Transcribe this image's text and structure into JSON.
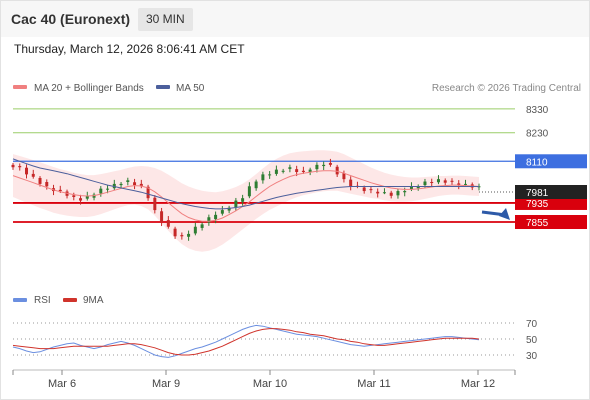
{
  "header": {
    "title": "Cac 40 (Euronext)",
    "timeframe": "30 MIN"
  },
  "timestamp": "Thursday, March 12, 2026 8:06:41 AM CET",
  "legend": {
    "ma20": "MA 20 + Bollinger Bands",
    "ma50": "MA 50",
    "copyright": "Research © 2026 Trading Central",
    "rsi": "RSI",
    "ma9": "9MA"
  },
  "colors": {
    "ma20": "#f08080",
    "band": "#fde3e3",
    "ma50": "#4c5f9c",
    "rsi": "#6b8fe0",
    "rsi_ma": "#d0342c",
    "green_level": "#9acd68",
    "resistance": "#3d6fe0",
    "support": "#d9000d",
    "price_tag": "#222222",
    "up_candle": "#2e7d32",
    "down_candle": "#c62828",
    "arrow": "#2d5aa8"
  },
  "chart_data": [
    {
      "type": "candlestick",
      "ylim": [
        7750,
        8380
      ],
      "x_ticks": [
        "Mar 6",
        "Mar 9",
        "Mar 10",
        "Mar 11",
        "Mar 12"
      ],
      "levels": [
        {
          "label": "8330",
          "value": 8330,
          "kind": "target"
        },
        {
          "label": "8230",
          "value": 8230,
          "kind": "target"
        },
        {
          "label": "8110",
          "value": 8110,
          "kind": "resistance"
        },
        {
          "label": "7935",
          "value": 7935,
          "kind": "pivot"
        },
        {
          "label": "7855",
          "value": 7855,
          "kind": "support"
        }
      ],
      "last_price": {
        "label": "7981",
        "value": 7981
      },
      "direction_arrow": "down toward 7855",
      "close_path": [
        8090,
        8080,
        8060,
        8040,
        8020,
        8000,
        7990,
        7980,
        7970,
        7955,
        7950,
        7960,
        7975,
        7990,
        8000,
        8010,
        8020,
        8025,
        8015,
        8000,
        7960,
        7900,
        7860,
        7830,
        7800,
        7790,
        7810,
        7830,
        7850,
        7870,
        7890,
        7900,
        7920,
        7940,
        7960,
        8000,
        8030,
        8050,
        8060,
        8070,
        8075,
        8080,
        8070,
        8060,
        8080,
        8090,
        8100,
        8090,
        8060,
        8030,
        8010,
        8000,
        7990,
        7985,
        7980,
        7975,
        7970,
        7980,
        7990,
        8000,
        8010,
        8020,
        8025,
        8030,
        8025,
        8020,
        8015,
        8010,
        8005,
        8000
      ],
      "ma20_path": [
        8050,
        8040,
        8030,
        8020,
        8010,
        8000,
        7990,
        7982,
        7976,
        7970,
        7966,
        7964,
        7966,
        7972,
        7980,
        7988,
        7996,
        8004,
        8008,
        8006,
        7998,
        7982,
        7960,
        7936,
        7912,
        7890,
        7874,
        7864,
        7858,
        7858,
        7862,
        7872,
        7886,
        7902,
        7920,
        7940,
        7962,
        7984,
        8004,
        8020,
        8034,
        8046,
        8054,
        8060,
        8064,
        8068,
        8070,
        8070,
        8068,
        8060,
        8050,
        8040,
        8030,
        8020,
        8012,
        8004,
        7998,
        7994,
        7992,
        7992,
        7994,
        7998,
        8002,
        8006,
        8008,
        8010,
        8010,
        8008,
        8006,
        8004
      ],
      "ma50_path": [
        8120,
        8110,
        8100,
        8090,
        8082,
        8076,
        8070,
        8064,
        8058,
        8050,
        8042,
        8034,
        8026,
        8018,
        8010,
        8004,
        7998,
        7992,
        7986,
        7980,
        7972,
        7964,
        7956,
        7948,
        7940,
        7932,
        7926,
        7920,
        7916,
        7912,
        7910,
        7910,
        7912,
        7916,
        7920,
        7926,
        7934,
        7942,
        7950,
        7958,
        7964,
        7970,
        7976,
        7980,
        7984,
        7988,
        7992,
        7996,
        8000,
        8002,
        8004,
        8004,
        8004,
        8004,
        8004,
        8004,
        8004,
        8004,
        8004,
        8004,
        8004,
        8004,
        8004,
        8004,
        8004,
        8004,
        8004,
        8004,
        8004,
        8004
      ],
      "band_width": [
        90,
        92,
        94,
        95,
        96,
        96,
        96,
        95,
        94,
        92,
        90,
        88,
        86,
        84,
        82,
        80,
        78,
        78,
        80,
        84,
        90,
        100,
        110,
        118,
        124,
        128,
        130,
        130,
        128,
        124,
        118,
        112,
        106,
        100,
        96,
        94,
        94,
        96,
        98,
        100,
        100,
        98,
        95,
        92,
        90,
        88,
        86,
        84,
        82,
        80,
        76,
        72,
        68,
        64,
        60,
        58,
        56,
        54,
        52,
        50,
        48,
        46,
        44,
        42,
        40,
        40,
        40,
        40,
        40,
        40
      ]
    },
    {
      "type": "line",
      "ylim": [
        20,
        80
      ],
      "y_ticks": [
        70,
        50,
        30
      ],
      "rsi": [
        40,
        38,
        35,
        33,
        34,
        37,
        40,
        42,
        44,
        45,
        42,
        40,
        38,
        40,
        43,
        45,
        47,
        45,
        42,
        38,
        34,
        30,
        28,
        27,
        29,
        32,
        35,
        38,
        40,
        43,
        46,
        50,
        54,
        58,
        62,
        65,
        67,
        66,
        64,
        62,
        60,
        58,
        56,
        55,
        54,
        53,
        51,
        49,
        47,
        45,
        43,
        42,
        41,
        42,
        43,
        44,
        45,
        46,
        47,
        48,
        49,
        50,
        51,
        52,
        53,
        53,
        52,
        51,
        50,
        49
      ],
      "rsi_ma": [
        42,
        41,
        40,
        39,
        38,
        38,
        38,
        39,
        40,
        41,
        41,
        41,
        41,
        41,
        41,
        42,
        43,
        44,
        44,
        43,
        41,
        39,
        36,
        33,
        31,
        30,
        30,
        31,
        33,
        35,
        38,
        41,
        45,
        49,
        53,
        57,
        60,
        62,
        63,
        63,
        62,
        61,
        59,
        58,
        56,
        55,
        54,
        52,
        50,
        49,
        47,
        46,
        44,
        43,
        42,
        42,
        43,
        44,
        45,
        46,
        47,
        48,
        49,
        50,
        51,
        51,
        51,
        51,
        51,
        50
      ]
    }
  ]
}
